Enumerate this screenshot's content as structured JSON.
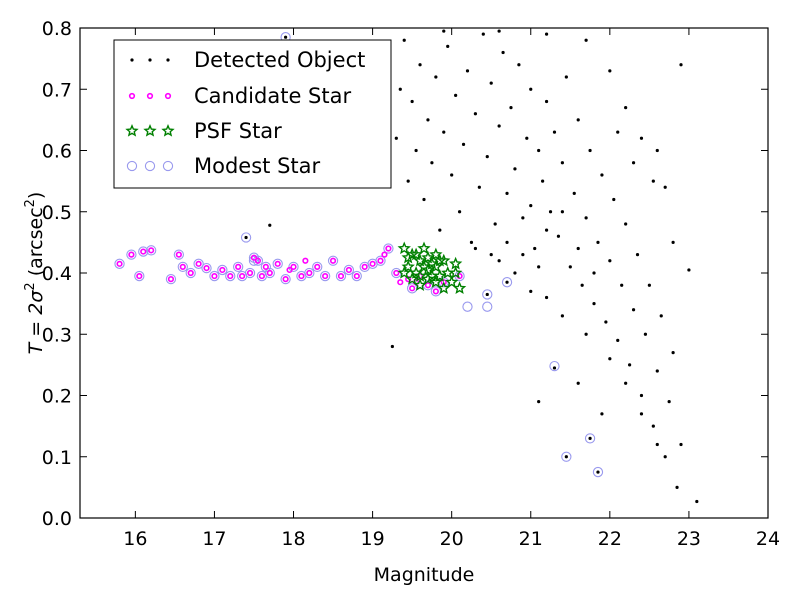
{
  "chart_data": {
    "type": "scatter",
    "xlabel": "Magnitude",
    "ylabel_parts": {
      "main": "T = 2σ",
      "sup": "2",
      "unit": " (arcsec",
      "unit_sup": "2",
      "close": ")"
    },
    "xlim": [
      15.3,
      24.0
    ],
    "ylim": [
      0.0,
      0.8
    ],
    "xticks": [
      16,
      17,
      18,
      19,
      20,
      21,
      22,
      23,
      24
    ],
    "yticks": [
      0.0,
      0.1,
      0.2,
      0.3,
      0.4,
      0.5,
      0.6,
      0.7,
      0.8
    ],
    "ytick_labels": [
      "0.0",
      "0.1",
      "0.2",
      "0.3",
      "0.4",
      "0.5",
      "0.6",
      "0.7",
      "0.8"
    ],
    "grid": false,
    "legend_position": "top-left",
    "colors": {
      "detected": "#000000",
      "candidate": "#ff00ff",
      "psf": "#008000",
      "modest": "#9999ee"
    },
    "series": [
      {
        "name": "Detected Object",
        "marker": "dot",
        "points": [
          [
            17.4,
            0.458
          ],
          [
            17.7,
            0.478
          ],
          [
            17.9,
            0.785
          ],
          [
            19.25,
            0.28
          ],
          [
            19.2,
            0.75
          ],
          [
            19.3,
            0.62
          ],
          [
            19.35,
            0.7
          ],
          [
            19.4,
            0.78
          ],
          [
            19.45,
            0.55
          ],
          [
            19.5,
            0.68
          ],
          [
            19.55,
            0.6
          ],
          [
            19.6,
            0.74
          ],
          [
            19.65,
            0.52
          ],
          [
            19.7,
            0.65
          ],
          [
            19.75,
            0.58
          ],
          [
            19.8,
            0.72
          ],
          [
            19.85,
            0.47
          ],
          [
            19.9,
            0.63
          ],
          [
            19.95,
            0.77
          ],
          [
            20.0,
            0.56
          ],
          [
            20.05,
            0.69
          ],
          [
            20.1,
            0.5
          ],
          [
            20.15,
            0.61
          ],
          [
            20.2,
            0.73
          ],
          [
            20.25,
            0.45
          ],
          [
            20.3,
            0.66
          ],
          [
            20.35,
            0.54
          ],
          [
            20.4,
            0.79
          ],
          [
            20.45,
            0.59
          ],
          [
            20.5,
            0.71
          ],
          [
            20.55,
            0.48
          ],
          [
            20.6,
            0.64
          ],
          [
            20.65,
            0.76
          ],
          [
            20.7,
            0.53
          ],
          [
            20.75,
            0.67
          ],
          [
            20.8,
            0.57
          ],
          [
            20.85,
            0.74
          ],
          [
            20.9,
            0.49
          ],
          [
            20.95,
            0.62
          ],
          [
            21.0,
            0.7
          ],
          [
            21.05,
            0.44
          ],
          [
            21.1,
            0.6
          ],
          [
            21.15,
            0.55
          ],
          [
            21.2,
            0.68
          ],
          [
            21.25,
            0.5
          ],
          [
            21.3,
            0.63
          ],
          [
            21.35,
            0.46
          ],
          [
            21.4,
            0.58
          ],
          [
            21.45,
            0.72
          ],
          [
            21.5,
            0.41
          ],
          [
            21.55,
            0.53
          ],
          [
            21.6,
            0.65
          ],
          [
            21.65,
            0.38
          ],
          [
            21.7,
            0.49
          ],
          [
            21.75,
            0.6
          ],
          [
            21.8,
            0.35
          ],
          [
            21.85,
            0.45
          ],
          [
            21.9,
            0.56
          ],
          [
            21.95,
            0.32
          ],
          [
            22.0,
            0.42
          ],
          [
            22.05,
            0.52
          ],
          [
            22.1,
            0.29
          ],
          [
            22.15,
            0.38
          ],
          [
            22.2,
            0.48
          ],
          [
            22.25,
            0.25
          ],
          [
            22.3,
            0.34
          ],
          [
            22.35,
            0.43
          ],
          [
            22.4,
            0.2
          ],
          [
            22.45,
            0.3
          ],
          [
            22.5,
            0.38
          ],
          [
            22.55,
            0.15
          ],
          [
            22.6,
            0.24
          ],
          [
            22.65,
            0.33
          ],
          [
            22.7,
            0.1
          ],
          [
            22.75,
            0.19
          ],
          [
            22.8,
            0.27
          ],
          [
            22.85,
            0.05
          ],
          [
            22.9,
            0.12
          ],
          [
            23.0,
            0.405
          ],
          [
            23.1,
            0.027
          ],
          [
            22.9,
            0.74
          ],
          [
            22.8,
            0.45
          ],
          [
            22.7,
            0.54
          ],
          [
            22.6,
            0.6
          ],
          [
            21.3,
            0.245
          ],
          [
            21.45,
            0.1
          ],
          [
            21.85,
            0.075
          ],
          [
            21.75,
            0.13
          ],
          [
            21.1,
            0.19
          ],
          [
            21.6,
            0.22
          ],
          [
            21.9,
            0.17
          ],
          [
            20.45,
            0.365
          ],
          [
            20.7,
            0.385
          ],
          [
            21.0,
            0.51
          ],
          [
            21.2,
            0.47
          ],
          [
            21.4,
            0.5
          ],
          [
            21.6,
            0.44
          ],
          [
            21.8,
            0.4
          ],
          [
            20.6,
            0.42
          ],
          [
            20.8,
            0.4
          ],
          [
            21.0,
            0.37
          ],
          [
            21.2,
            0.36
          ],
          [
            21.4,
            0.33
          ],
          [
            21.7,
            0.3
          ],
          [
            22.0,
            0.26
          ],
          [
            22.2,
            0.22
          ],
          [
            22.4,
            0.17
          ],
          [
            22.6,
            0.12
          ],
          [
            20.3,
            0.44
          ],
          [
            20.5,
            0.43
          ],
          [
            20.7,
            0.45
          ],
          [
            20.9,
            0.43
          ],
          [
            21.1,
            0.41
          ],
          [
            19.9,
            0.795
          ],
          [
            20.6,
            0.795
          ],
          [
            21.2,
            0.79
          ],
          [
            21.7,
            0.78
          ],
          [
            22.0,
            0.73
          ],
          [
            22.2,
            0.67
          ],
          [
            22.4,
            0.62
          ],
          [
            22.55,
            0.55
          ],
          [
            22.3,
            0.58
          ],
          [
            22.1,
            0.63
          ]
        ]
      },
      {
        "name": "Candidate Star",
        "marker": "small-circle",
        "points": [
          [
            15.8,
            0.415
          ],
          [
            15.95,
            0.43
          ],
          [
            16.05,
            0.395
          ],
          [
            16.1,
            0.435
          ],
          [
            16.2,
            0.437
          ],
          [
            16.45,
            0.39
          ],
          [
            16.55,
            0.43
          ],
          [
            16.6,
            0.41
          ],
          [
            16.7,
            0.4
          ],
          [
            16.8,
            0.415
          ],
          [
            17.0,
            0.395
          ],
          [
            17.1,
            0.405
          ],
          [
            17.2,
            0.395
          ],
          [
            17.3,
            0.41
          ],
          [
            17.35,
            0.395
          ],
          [
            17.45,
            0.4
          ],
          [
            17.5,
            0.425
          ],
          [
            17.55,
            0.42
          ],
          [
            17.6,
            0.395
          ],
          [
            17.65,
            0.41
          ],
          [
            17.7,
            0.4
          ],
          [
            17.8,
            0.415
          ],
          [
            17.9,
            0.39
          ],
          [
            18.0,
            0.41
          ],
          [
            18.1,
            0.395
          ],
          [
            18.2,
            0.4
          ],
          [
            18.3,
            0.41
          ],
          [
            18.4,
            0.395
          ],
          [
            18.5,
            0.42
          ],
          [
            18.6,
            0.395
          ],
          [
            18.7,
            0.405
          ],
          [
            18.8,
            0.395
          ],
          [
            18.9,
            0.41
          ],
          [
            19.0,
            0.415
          ],
          [
            19.1,
            0.42
          ],
          [
            19.15,
            0.43
          ],
          [
            19.2,
            0.44
          ],
          [
            19.3,
            0.4
          ],
          [
            19.35,
            0.385
          ],
          [
            19.45,
            0.39
          ],
          [
            19.5,
            0.375
          ],
          [
            19.55,
            0.385
          ],
          [
            19.6,
            0.395
          ],
          [
            19.7,
            0.38
          ],
          [
            19.8,
            0.37
          ],
          [
            19.9,
            0.385
          ],
          [
            20.1,
            0.395
          ],
          [
            18.15,
            0.42
          ],
          [
            17.95,
            0.405
          ],
          [
            16.9,
            0.408
          ]
        ]
      },
      {
        "name": "PSF Star",
        "marker": "star",
        "points": [
          [
            19.4,
            0.44
          ],
          [
            19.45,
            0.41
          ],
          [
            19.5,
            0.43
          ],
          [
            19.55,
            0.4
          ],
          [
            19.6,
            0.42
          ],
          [
            19.65,
            0.44
          ],
          [
            19.7,
            0.39
          ],
          [
            19.75,
            0.415
          ],
          [
            19.8,
            0.43
          ],
          [
            19.85,
            0.395
          ],
          [
            19.9,
            0.42
          ],
          [
            19.95,
            0.4
          ],
          [
            20.0,
            0.385
          ],
          [
            20.05,
            0.415
          ],
          [
            20.1,
            0.375
          ],
          [
            19.5,
            0.39
          ],
          [
            19.6,
            0.38
          ],
          [
            19.7,
            0.405
          ],
          [
            19.8,
            0.385
          ],
          [
            19.9,
            0.375
          ],
          [
            19.45,
            0.425
          ],
          [
            19.55,
            0.43
          ],
          [
            19.65,
            0.41
          ],
          [
            19.75,
            0.395
          ],
          [
            19.85,
            0.42
          ],
          [
            19.4,
            0.4
          ],
          [
            19.6,
            0.395
          ],
          [
            19.8,
            0.41
          ],
          [
            20.05,
            0.4
          ],
          [
            19.7,
            0.425
          ]
        ]
      },
      {
        "name": "Modest Star",
        "marker": "ring",
        "points": [
          [
            15.8,
            0.415
          ],
          [
            15.95,
            0.43
          ],
          [
            16.05,
            0.395
          ],
          [
            16.1,
            0.435
          ],
          [
            16.2,
            0.437
          ],
          [
            16.45,
            0.39
          ],
          [
            16.55,
            0.43
          ],
          [
            16.6,
            0.41
          ],
          [
            16.7,
            0.4
          ],
          [
            16.8,
            0.415
          ],
          [
            17.0,
            0.395
          ],
          [
            17.1,
            0.405
          ],
          [
            17.2,
            0.395
          ],
          [
            17.3,
            0.41
          ],
          [
            17.35,
            0.395
          ],
          [
            17.45,
            0.4
          ],
          [
            17.5,
            0.425
          ],
          [
            17.55,
            0.42
          ],
          [
            17.6,
            0.395
          ],
          [
            17.65,
            0.41
          ],
          [
            17.7,
            0.4
          ],
          [
            17.8,
            0.415
          ],
          [
            17.9,
            0.39
          ],
          [
            18.0,
            0.41
          ],
          [
            18.1,
            0.395
          ],
          [
            18.2,
            0.4
          ],
          [
            18.3,
            0.41
          ],
          [
            18.4,
            0.395
          ],
          [
            18.5,
            0.42
          ],
          [
            18.6,
            0.395
          ],
          [
            18.7,
            0.405
          ],
          [
            18.8,
            0.395
          ],
          [
            18.9,
            0.41
          ],
          [
            19.0,
            0.415
          ],
          [
            19.1,
            0.42
          ],
          [
            19.2,
            0.44
          ],
          [
            19.3,
            0.4
          ],
          [
            19.5,
            0.375
          ],
          [
            19.7,
            0.38
          ],
          [
            19.8,
            0.37
          ],
          [
            19.9,
            0.385
          ],
          [
            20.1,
            0.395
          ],
          [
            20.2,
            0.345
          ],
          [
            20.45,
            0.345
          ],
          [
            20.45,
            0.365
          ],
          [
            20.7,
            0.385
          ],
          [
            21.3,
            0.248
          ],
          [
            21.45,
            0.1
          ],
          [
            21.75,
            0.13
          ],
          [
            21.85,
            0.075
          ],
          [
            17.4,
            0.458
          ],
          [
            17.9,
            0.785
          ],
          [
            17.5,
            0.42
          ],
          [
            16.9,
            0.408
          ]
        ]
      }
    ]
  }
}
